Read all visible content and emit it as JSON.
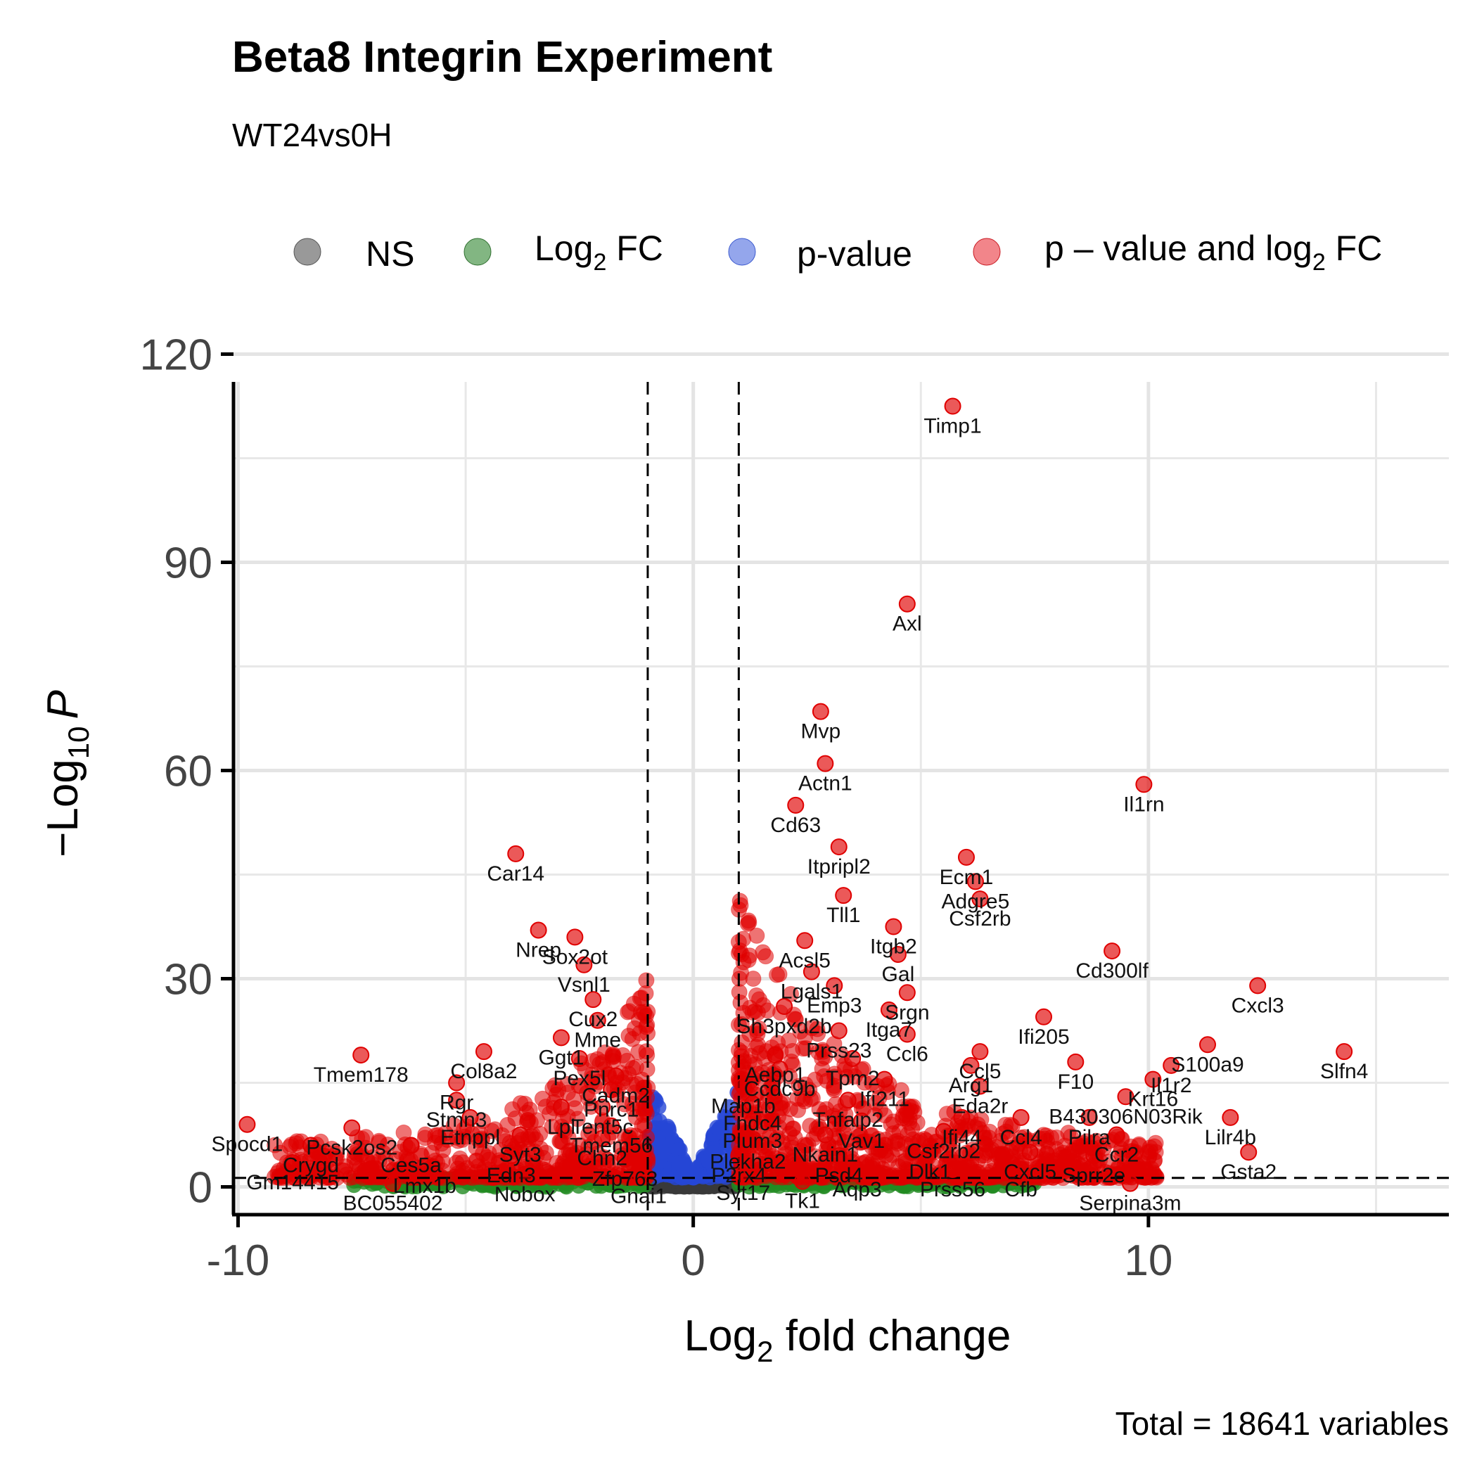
{
  "chart_data": {
    "type": "scatter",
    "title": "Beta8 Integrin Experiment",
    "subtitle": "WT24vs0H",
    "xlabel_base": "Log",
    "xlabel_sub": "2",
    "xlabel_rest": " fold change",
    "ylabel_prefix": "−Log",
    "ylabel_sub": "10",
    "ylabel_var": "P",
    "caption": "Total = 18641 variables",
    "xlim": [
      -10.1,
      16.6
    ],
    "ylim": [
      -4,
      116
    ],
    "x_ticks": [
      -10,
      0,
      10
    ],
    "x_tick_labels": [
      "-10",
      "0",
      "10"
    ],
    "y_ticks": [
      0,
      30,
      60,
      90,
      120
    ],
    "y_tick_labels": [
      "0",
      "30",
      "60",
      "90",
      "120"
    ],
    "fc_cutoff": 1,
    "p_cutoff_log10": 1.3,
    "grid": true,
    "legend_position": "top",
    "legend": [
      {
        "key": "ns",
        "label_main": "NS",
        "label_sub": "",
        "label_tail": "",
        "color": "#7f7f7f"
      },
      {
        "key": "fc",
        "label_main": "Log",
        "label_sub": "2",
        "label_tail": " FC",
        "color": "#3f8f3f"
      },
      {
        "key": "p",
        "label_main": "p-value",
        "label_sub": "",
        "label_tail": "",
        "color": "#4d6bdf"
      },
      {
        "key": "both",
        "label_main": "p – value and log",
        "label_sub": "2",
        "label_tail": " FC",
        "color": "#e8202a"
      }
    ],
    "series": [
      {
        "key": "ns",
        "color": "#3a3a3a"
      },
      {
        "key": "fc",
        "color": "#228b22"
      },
      {
        "key": "p",
        "color": "#2546d6"
      },
      {
        "key": "both",
        "color": "#e00000"
      }
    ],
    "labeled_points": [
      {
        "label": "Timp1",
        "x": 5.7,
        "y": 112.5
      },
      {
        "label": "Axl",
        "x": 4.7,
        "y": 84
      },
      {
        "label": "Mvp",
        "x": 2.8,
        "y": 68.5
      },
      {
        "label": "Actn1",
        "x": 2.9,
        "y": 61
      },
      {
        "label": "Cd63",
        "x": 2.25,
        "y": 55
      },
      {
        "label": "Il1rn",
        "x": 9.9,
        "y": 58
      },
      {
        "label": "Ecm1",
        "x": 6.0,
        "y": 47.5
      },
      {
        "label": "Itpripl2",
        "x": 3.2,
        "y": 49
      },
      {
        "label": "Adgre5",
        "x": 6.2,
        "y": 44
      },
      {
        "label": "Csf2rb",
        "x": 6.3,
        "y": 41.5
      },
      {
        "label": "Tll1",
        "x": 3.3,
        "y": 42
      },
      {
        "label": "Itgb2",
        "x": 4.4,
        "y": 37.5
      },
      {
        "label": "Acsl5",
        "x": 2.45,
        "y": 35.5
      },
      {
        "label": "Gal",
        "x": 4.5,
        "y": 33.5
      },
      {
        "label": "Car14",
        "x": -3.9,
        "y": 48
      },
      {
        "label": "Nrep",
        "x": -3.4,
        "y": 37
      },
      {
        "label": "Sox2ot",
        "x": -2.6,
        "y": 36
      },
      {
        "label": "Vsnl1",
        "x": -2.4,
        "y": 32
      },
      {
        "label": "Lgals1",
        "x": 2.6,
        "y": 31
      },
      {
        "label": "Emp3",
        "x": 3.1,
        "y": 29
      },
      {
        "label": "Srgn",
        "x": 4.7,
        "y": 28
      },
      {
        "label": "Cd300lf",
        "x": 9.2,
        "y": 34
      },
      {
        "label": "Cux2",
        "x": -2.2,
        "y": 27
      },
      {
        "label": "Sh3pxd2b",
        "x": 2.0,
        "y": 26
      },
      {
        "label": "Itga7",
        "x": 4.3,
        "y": 25.5
      },
      {
        "label": "Cxcl3",
        "x": 12.4,
        "y": 29
      },
      {
        "label": "Mme",
        "x": -2.1,
        "y": 24
      },
      {
        "label": "Ifi205",
        "x": 7.7,
        "y": 24.5
      },
      {
        "label": "Prss23",
        "x": 3.2,
        "y": 22.5
      },
      {
        "label": "Ccl6",
        "x": 4.7,
        "y": 22
      },
      {
        "label": "Ggt1",
        "x": -2.9,
        "y": 21.5
      },
      {
        "label": "Col8a2",
        "x": -4.6,
        "y": 19.5
      },
      {
        "label": "S100a9",
        "x": 11.3,
        "y": 20.5
      },
      {
        "label": "Tmem178",
        "x": -7.3,
        "y": 19
      },
      {
        "label": "Aebp1",
        "x": 1.8,
        "y": 19
      },
      {
        "label": "Pex5l",
        "x": -2.5,
        "y": 18.5
      },
      {
        "label": "Tpm2",
        "x": 3.5,
        "y": 18.5
      },
      {
        "label": "Ccl5",
        "x": 6.3,
        "y": 19.5
      },
      {
        "label": "F10",
        "x": 8.4,
        "y": 18
      },
      {
        "label": "Il1r2",
        "x": 10.5,
        "y": 17.5
      },
      {
        "label": "Slfn4",
        "x": 14.3,
        "y": 19.5
      },
      {
        "label": "Ccdc9b",
        "x": 1.9,
        "y": 17
      },
      {
        "label": "Arg1",
        "x": 6.1,
        "y": 17.5
      },
      {
        "label": "Cadm2",
        "x": -1.7,
        "y": 16
      },
      {
        "label": "Ifi211",
        "x": 4.2,
        "y": 15.5
      },
      {
        "label": "Krt16",
        "x": 10.1,
        "y": 15.5
      },
      {
        "label": "Rgr",
        "x": -5.2,
        "y": 15
      },
      {
        "label": "Pnrc1",
        "x": -1.8,
        "y": 14
      },
      {
        "label": "Map1b",
        "x": 1.1,
        "y": 14.5
      },
      {
        "label": "Eda2r",
        "x": 6.3,
        "y": 14.5
      },
      {
        "label": "Tnfaip2",
        "x": 3.4,
        "y": 12.5
      },
      {
        "label": "B430306N03Rik",
        "x": 9.5,
        "y": 13
      },
      {
        "label": "Stmn3",
        "x": -5.2,
        "y": 12.5
      },
      {
        "label": "Lpl",
        "x": -2.9,
        "y": 11.5
      },
      {
        "label": "Tent5c",
        "x": -2.0,
        "y": 11.5
      },
      {
        "label": "Fndc4",
        "x": 1.3,
        "y": 12
      },
      {
        "label": "Ifi44",
        "x": 5.9,
        "y": 10
      },
      {
        "label": "Ccl4",
        "x": 7.2,
        "y": 10
      },
      {
        "label": "Pilra",
        "x": 8.7,
        "y": 10
      },
      {
        "label": "Lilr4b",
        "x": 11.8,
        "y": 10
      },
      {
        "label": "Etnppl",
        "x": -4.9,
        "y": 10
      },
      {
        "label": "Vav1",
        "x": 3.7,
        "y": 9.5
      },
      {
        "label": "Spocd1",
        "x": -9.8,
        "y": 9
      },
      {
        "label": "Pcsk2os2",
        "x": -7.5,
        "y": 8.5
      },
      {
        "label": "Tmem56",
        "x": -1.8,
        "y": 8.8
      },
      {
        "label": "Plum3",
        "x": 1.3,
        "y": 9.5
      },
      {
        "label": "Csf2rb2",
        "x": 5.5,
        "y": 8
      },
      {
        "label": "Nkain1",
        "x": 2.9,
        "y": 7.5
      },
      {
        "label": "Syt3",
        "x": -3.8,
        "y": 7.5
      },
      {
        "label": "Chn2",
        "x": -2.0,
        "y": 7
      },
      {
        "label": "Ccr2",
        "x": 9.3,
        "y": 7.5
      },
      {
        "label": "Ces5a",
        "x": -6.2,
        "y": 6
      },
      {
        "label": "Crygd",
        "x": -8.4,
        "y": 6
      },
      {
        "label": "Plekha2",
        "x": 1.2,
        "y": 6.5
      },
      {
        "label": "Cxcl5",
        "x": 7.4,
        "y": 5
      },
      {
        "label": "Gsta2",
        "x": 12.2,
        "y": 5
      },
      {
        "label": "Dlk1",
        "x": 5.2,
        "y": 5
      },
      {
        "label": "Sprr2e",
        "x": 8.8,
        "y": 4.5
      },
      {
        "label": "Edn3",
        "x": -4.0,
        "y": 4.5
      },
      {
        "label": "Psd4",
        "x": 3.2,
        "y": 4.5
      },
      {
        "label": "Zfp763",
        "x": -1.5,
        "y": 4
      },
      {
        "label": "P2rx4",
        "x": 1.0,
        "y": 4.5
      },
      {
        "label": "Gm14415",
        "x": -8.8,
        "y": 3.5
      },
      {
        "label": "Lmx1b",
        "x": -5.9,
        "y": 3
      },
      {
        "label": "Aqp3",
        "x": 3.6,
        "y": 2.5
      },
      {
        "label": "Prss56",
        "x": 5.7,
        "y": 2.5
      },
      {
        "label": "Cfb",
        "x": 7.2,
        "y": 2.5
      },
      {
        "label": "Nobox",
        "x": -3.7,
        "y": 1.8
      },
      {
        "label": "Gnai1",
        "x": -1.2,
        "y": 1.5
      },
      {
        "label": "Syt17",
        "x": 1.1,
        "y": 2
      },
      {
        "label": "BC055402",
        "x": -6.6,
        "y": 0.5
      },
      {
        "label": "Tk1",
        "x": 2.4,
        "y": 0.8
      },
      {
        "label": "Serpina3m",
        "x": 9.6,
        "y": 0.5
      }
    ]
  }
}
